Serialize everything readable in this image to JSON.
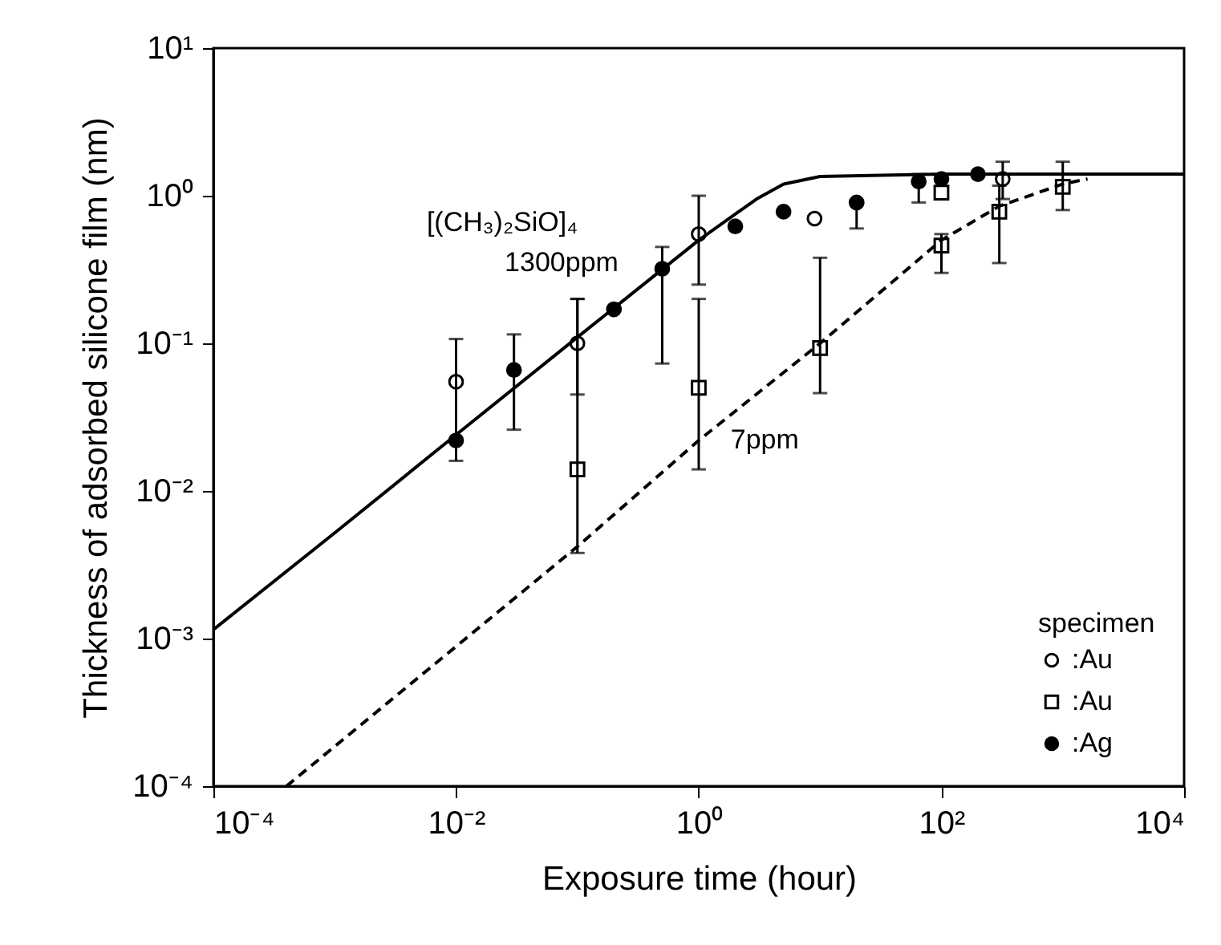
{
  "chart_data": {
    "type": "scatter",
    "xlabel": "Exposure time (hour)",
    "ylabel": "Thickness of adsorbed silicone film (nm)",
    "log": "xy",
    "grid": false,
    "legend": "bottom right",
    "legend_title": "specimen",
    "xlim": [
      0.0001,
      10000
    ],
    "ylim": [
      0.0001,
      10
    ],
    "xticks": [
      {
        "value": 0.0001,
        "label": "10⁻⁴"
      },
      {
        "value": 0.01,
        "label": "10⁻²"
      },
      {
        "value": 1,
        "label": "10⁰"
      },
      {
        "value": 100,
        "label": "10²"
      },
      {
        "value": 10000,
        "label": "10⁴"
      }
    ],
    "yticks": [
      {
        "value": 0.0001,
        "label": "10⁻⁴"
      },
      {
        "value": 0.001,
        "label": "10⁻³"
      },
      {
        "value": 0.01,
        "label": "10⁻²"
      },
      {
        "value": 0.1,
        "label": "10⁻¹"
      },
      {
        "value": 1,
        "label": "10⁰"
      },
      {
        "value": 10,
        "label": "10¹"
      }
    ],
    "series": [
      {
        "name": ":Au",
        "marker": "circle",
        "color": "#ffffff",
        "x": [
          0.01,
          0.1,
          1,
          9,
          320
        ],
        "values": [
          0.055,
          0.1,
          0.55,
          0.7,
          1.3
        ],
        "errors": [
          [
            0.016,
            0.107
          ],
          [
            0.045,
            0.2
          ],
          [
            0.25,
            1.0
          ],
          null,
          [
            0.95,
            1.7
          ]
        ]
      },
      {
        "name": ":Au",
        "marker": "square",
        "color": "#ffffff",
        "x": [
          0.1,
          1,
          10,
          100,
          100,
          300,
          1000
        ],
        "values": [
          0.014,
          0.05,
          0.093,
          0.46,
          1.05,
          0.78,
          1.15
        ],
        "errors": [
          [
            0.0038,
            0.2
          ],
          [
            0.014,
            0.2
          ],
          [
            0.046,
            0.38
          ],
          [
            0.3,
            0.55
          ],
          null,
          [
            0.35,
            1.17
          ],
          [
            0.8,
            1.7
          ]
        ]
      },
      {
        "name": ":Ag",
        "marker": "circle",
        "color": "#000000",
        "x": [
          0.01,
          0.03,
          0.2,
          0.5,
          2,
          5,
          20,
          65,
          100,
          200
        ],
        "values": [
          0.022,
          0.066,
          0.17,
          0.32,
          0.62,
          0.78,
          0.9,
          1.25,
          1.3,
          1.4
        ],
        "errors": [
          null,
          [
            0.026,
            0.115
          ],
          null,
          [
            0.073,
            0.45
          ],
          null,
          null,
          [
            0.6,
            0.9
          ],
          [
            0.9,
            1.4
          ],
          null,
          null
        ]
      },
      {
        "type": "line",
        "line_style": "solid",
        "color": "#000000",
        "x": [
          0.0001,
          0.001,
          0.01,
          0.1,
          1,
          2,
          3,
          5,
          10,
          100,
          10000
        ],
        "values": [
          0.00115,
          0.0052,
          0.024,
          0.11,
          0.5,
          0.75,
          0.95,
          1.2,
          1.35,
          1.4,
          1.4
        ]
      },
      {
        "type": "line",
        "line_style": "dashed",
        "color": "#000000",
        "x": [
          0.0004,
          0.1,
          1,
          10,
          100,
          300,
          1000,
          1600
        ],
        "values": [
          0.0001,
          0.0042,
          0.022,
          0.1,
          0.5,
          0.85,
          1.2,
          1.3
        ]
      }
    ],
    "annotations": [
      "[(CH₃)₂SiO]₄",
      "1300ppm",
      "7ppm"
    ]
  }
}
